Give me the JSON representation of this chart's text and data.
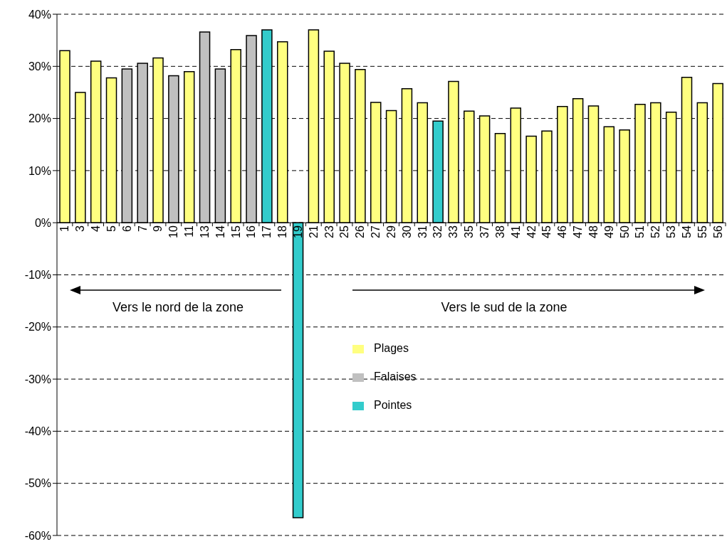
{
  "chart_data": {
    "type": "bar",
    "stacked": true,
    "categories": [
      "1",
      "3",
      "4",
      "5",
      "6",
      "7",
      "9",
      "10",
      "11",
      "13",
      "14",
      "15",
      "16",
      "17",
      "18",
      "19",
      "21",
      "23",
      "25",
      "26",
      "27",
      "29",
      "30",
      "31",
      "32",
      "33",
      "35",
      "37",
      "38",
      "41",
      "42",
      "45",
      "46",
      "47",
      "48",
      "49",
      "50",
      "51",
      "52",
      "53",
      "54",
      "55",
      "56"
    ],
    "series": [
      {
        "name": "Plages",
        "color": "#ffff80",
        "values": [
          33,
          25,
          31,
          27.8,
          null,
          null,
          31.6,
          null,
          29,
          null,
          null,
          33.2,
          null,
          null,
          34.7,
          null,
          37,
          32.9,
          30.6,
          29.4,
          23.1,
          21.5,
          25.7,
          23,
          null,
          27.1,
          21.4,
          20.5,
          17.1,
          22,
          16.6,
          17.6,
          22.3,
          23.8,
          22.4,
          18.4,
          17.8,
          22.7,
          23,
          21.2,
          27.9,
          23,
          26.7
        ]
      },
      {
        "name": "Falaises",
        "color": "#c0c0c0",
        "values": [
          null,
          null,
          null,
          null,
          29.5,
          30.6,
          null,
          28.2,
          null,
          36.6,
          29.5,
          null,
          35.9,
          null,
          null,
          null,
          null,
          null,
          null,
          null,
          null,
          null,
          null,
          null,
          null,
          null,
          null,
          null,
          null,
          null,
          null,
          null,
          null,
          null,
          null,
          null,
          null,
          null,
          null,
          null,
          null,
          null,
          null
        ]
      },
      {
        "name": "Pointes",
        "color": "#33cccc",
        "values": [
          null,
          null,
          null,
          null,
          null,
          null,
          null,
          null,
          null,
          null,
          null,
          null,
          null,
          37,
          null,
          -56.6,
          null,
          null,
          null,
          null,
          null,
          null,
          null,
          null,
          19.5,
          null,
          null,
          null,
          null,
          null,
          null,
          null,
          null,
          null,
          null,
          null,
          null,
          null,
          null,
          null,
          null,
          null,
          null
        ]
      }
    ],
    "ylim": [
      -60,
      40
    ],
    "yticks": [
      {
        "value": -60,
        "label": "-60%"
      },
      {
        "value": -50,
        "label": "-50%"
      },
      {
        "value": -40,
        "label": "-40%"
      },
      {
        "value": -30,
        "label": "-30%"
      },
      {
        "value": -20,
        "label": "-20%"
      },
      {
        "value": -10,
        "label": "-10%"
      },
      {
        "value": 0,
        "label": "0%"
      },
      {
        "value": 10,
        "label": "10%"
      },
      {
        "value": 20,
        "label": "20%"
      },
      {
        "value": 30,
        "label": "30%"
      },
      {
        "value": 40,
        "label": "40%"
      }
    ],
    "grid": "y",
    "legend": "bottom",
    "annotations": [
      "Vers le nord de la zone",
      "Vers le sud de la zone"
    ]
  }
}
